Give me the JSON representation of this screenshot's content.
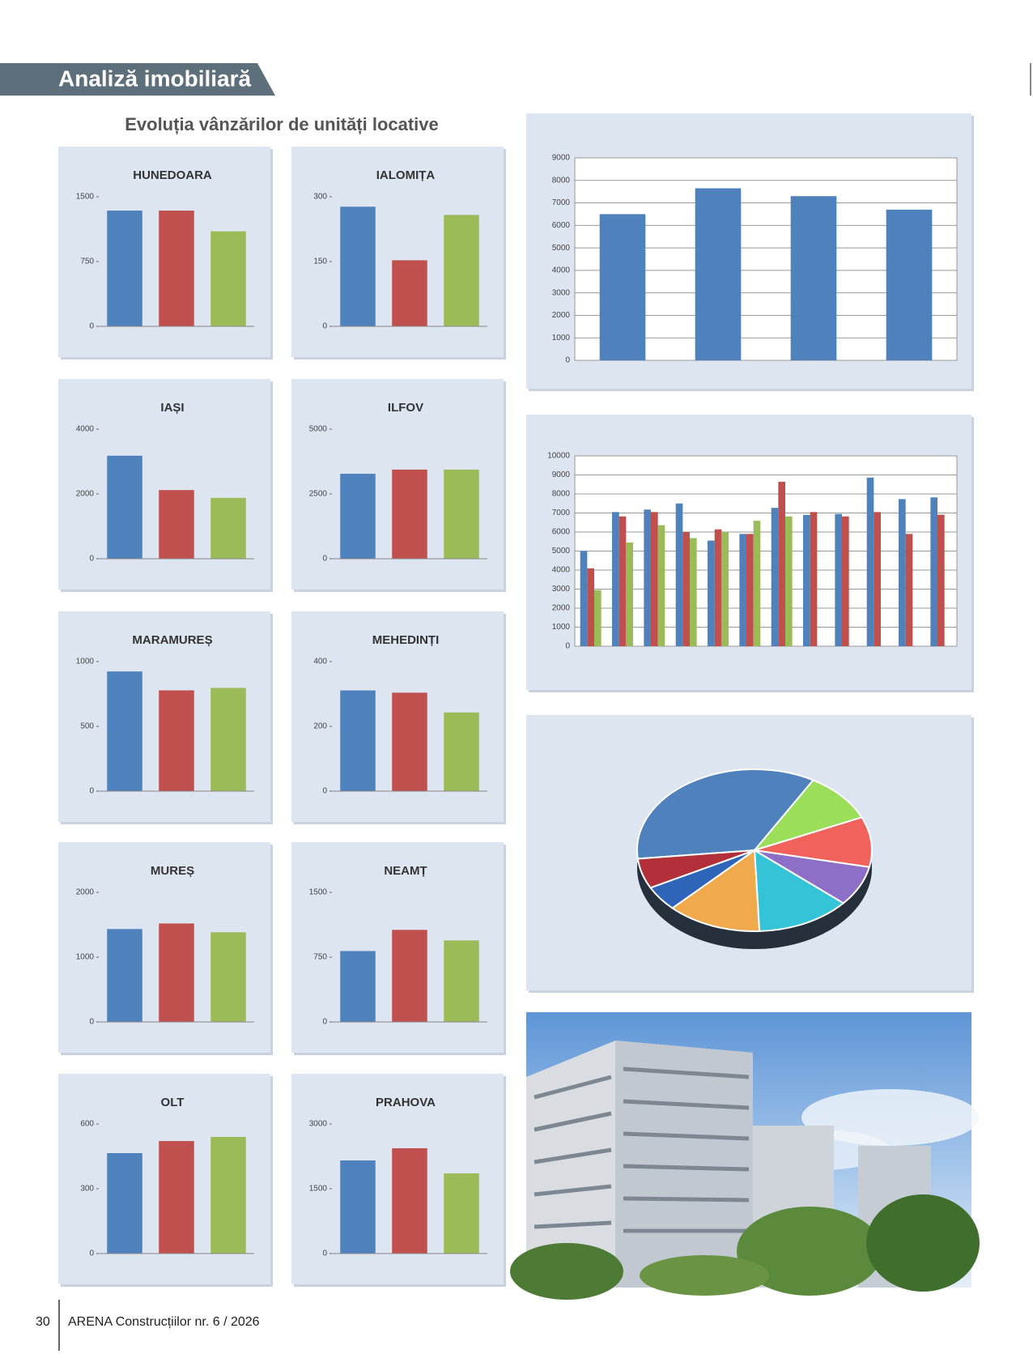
{
  "header": {
    "section": "Analiză imobiliară"
  },
  "title": "Evoluția vânzărilor de unități locative",
  "series_colors": [
    "#4f81bd",
    "#c0504d",
    "#9bbb59"
  ],
  "county_charts": [
    {
      "type": "bar",
      "title": "HUNEDOARA",
      "values": [
        1340,
        1340,
        1100
      ],
      "ylim": [
        0,
        1500
      ],
      "yticks": [
        0,
        750,
        1500
      ]
    },
    {
      "type": "bar",
      "title": "IALOMIȚA",
      "values": [
        277,
        153,
        258
      ],
      "ylim": [
        0,
        300
      ],
      "yticks": [
        0,
        150,
        300
      ]
    },
    {
      "type": "bar",
      "title": "IAȘI",
      "values": [
        3180,
        2120,
        1880
      ],
      "ylim": [
        0,
        4000
      ],
      "yticks": [
        0,
        2000,
        4000
      ]
    },
    {
      "type": "bar",
      "title": "ILFOV",
      "values": [
        3280,
        3440,
        3440
      ],
      "ylim": [
        0,
        5000
      ],
      "yticks": [
        0,
        2500,
        5000
      ]
    },
    {
      "type": "bar",
      "title": "MARAMUREȘ",
      "values": [
        924,
        778,
        797
      ],
      "ylim": [
        0,
        1000
      ],
      "yticks": [
        0,
        500,
        1000
      ]
    },
    {
      "type": "bar",
      "title": "MEHEDINȚI",
      "values": [
        311,
        304,
        243
      ],
      "ylim": [
        0,
        400
      ],
      "yticks": [
        0,
        200,
        400
      ]
    },
    {
      "type": "bar",
      "title": "MUREȘ",
      "values": [
        1434,
        1520,
        1384
      ],
      "ylim": [
        0,
        2000
      ],
      "yticks": [
        0,
        1000,
        2000
      ]
    },
    {
      "type": "bar",
      "title": "NEAMȚ",
      "values": [
        821,
        1066,
        944
      ],
      "ylim": [
        0,
        1500
      ],
      "yticks": [
        0,
        750,
        1500
      ]
    },
    {
      "type": "bar",
      "title": "OLT",
      "values": [
        465,
        521,
        540
      ],
      "ylim": [
        0,
        600
      ],
      "yticks": [
        0,
        300,
        600
      ]
    },
    {
      "type": "bar",
      "title": "PRAHOVA",
      "values": [
        2156,
        2438,
        1856
      ],
      "ylim": [
        0,
        3000
      ],
      "yticks": [
        0,
        1500,
        3000
      ]
    }
  ],
  "annual_chart": {
    "type": "bar",
    "values": [
      6500,
      7650,
      7300,
      6700
    ],
    "color": "#4f81bd",
    "ylim": [
      0,
      9000
    ],
    "yticks": [
      0,
      1000,
      2000,
      3000,
      4000,
      5000,
      6000,
      7000,
      8000,
      9000
    ],
    "grid": true
  },
  "monthly_chart": {
    "type": "grouped-bar",
    "grid": true,
    "ylim": [
      0,
      10000
    ],
    "yticks": [
      0,
      1000,
      2000,
      3000,
      4000,
      5000,
      6000,
      7000,
      8000,
      9000,
      10000
    ],
    "series": [
      {
        "color": "#4f81bd",
        "values": [
          5000,
          7050,
          7180,
          7500,
          5550,
          5900,
          7270,
          6900,
          6950,
          8860,
          7730,
          7820
        ]
      },
      {
        "color": "#c0504d",
        "values": [
          4090,
          6820,
          7050,
          6000,
          6140,
          5900,
          8640,
          7050,
          6820,
          7050,
          5900,
          6910
        ]
      },
      {
        "color": "#9bbb59",
        "values": [
          2950,
          5450,
          6360,
          5680,
          6000,
          6590,
          6820,
          null,
          null,
          null,
          null,
          null
        ]
      }
    ]
  },
  "pie_chart": {
    "type": "pie",
    "values": [
      35,
      10,
      10,
      8,
      13,
      13,
      5,
      6
    ],
    "colors": [
      "#4f81bd",
      "#9bde5a",
      "#f2625c",
      "#8e6fc8",
      "#35c3d8",
      "#f0a94c",
      "#2f65b8",
      "#b3303a"
    ]
  },
  "footer": {
    "page_number": "30",
    "publication": "ARENA Construcțiilor nr. 6 / 2026"
  }
}
